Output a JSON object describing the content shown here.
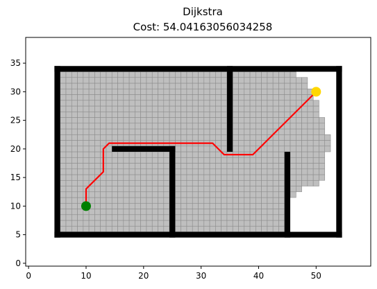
{
  "chart_data": {
    "type": "scatter",
    "title": "Dijkstra",
    "subtitle": "Cost: 54.04163056034258",
    "xlim": [
      -0.5,
      59.5
    ],
    "ylim": [
      -0.5,
      39.5
    ],
    "x_ticks": [
      "0",
      "10",
      "20",
      "30",
      "40",
      "50"
    ],
    "y_ticks": [
      "0",
      "5",
      "10",
      "15",
      "20",
      "25",
      "30",
      "35"
    ],
    "grid": false,
    "colors": {
      "visited_fill": "#bfbfbf",
      "visited_edge": "#8c8c8c",
      "obstacle": "#000000",
      "path": "#ff0000",
      "start": "#008000",
      "goal": "#ffd700"
    },
    "start": [
      10,
      10
    ],
    "goal": [
      50,
      30
    ],
    "obstacle_walls": [
      {
        "x1": 5,
        "y1": 5,
        "x2": 54,
        "y2": 5
      },
      {
        "x1": 5,
        "y1": 34,
        "x2": 54,
        "y2": 34
      },
      {
        "x1": 5,
        "y1": 5,
        "x2": 5,
        "y2": 34
      },
      {
        "x1": 54,
        "y1": 5,
        "x2": 54,
        "y2": 34
      },
      {
        "x1": 15,
        "y1": 20,
        "x2": 25,
        "y2": 20
      },
      {
        "x1": 25,
        "y1": 5,
        "x2": 25,
        "y2": 20
      },
      {
        "x1": 35,
        "y1": 20,
        "x2": 35,
        "y2": 34
      },
      {
        "x1": 45,
        "y1": 5,
        "x2": 45,
        "y2": 19
      }
    ],
    "visited_rows": [
      {
        "y": 6,
        "x_min": 6,
        "x_max": 44
      },
      {
        "y": 7,
        "x_min": 6,
        "x_max": 44
      },
      {
        "y": 8,
        "x_min": 6,
        "x_max": 44
      },
      {
        "y": 9,
        "x_min": 6,
        "x_max": 44
      },
      {
        "y": 10,
        "x_min": 6,
        "x_max": 44
      },
      {
        "y": 11,
        "x_min": 6,
        "x_max": 44
      },
      {
        "y": 12,
        "x_min": 6,
        "x_max": 46
      },
      {
        "y": 13,
        "x_min": 6,
        "x_max": 47
      },
      {
        "y": 14,
        "x_min": 6,
        "x_max": 50
      },
      {
        "y": 15,
        "x_min": 6,
        "x_max": 51
      },
      {
        "y": 16,
        "x_min": 6,
        "x_max": 51
      },
      {
        "y": 17,
        "x_min": 6,
        "x_max": 51
      },
      {
        "y": 18,
        "x_min": 6,
        "x_max": 51
      },
      {
        "y": 19,
        "x_min": 6,
        "x_max": 51
      },
      {
        "y": 20,
        "x_min": 6,
        "x_max": 52
      },
      {
        "y": 21,
        "x_min": 6,
        "x_max": 52
      },
      {
        "y": 22,
        "x_min": 6,
        "x_max": 52
      },
      {
        "y": 23,
        "x_min": 6,
        "x_max": 51
      },
      {
        "y": 24,
        "x_min": 6,
        "x_max": 51
      },
      {
        "y": 25,
        "x_min": 6,
        "x_max": 51
      },
      {
        "y": 26,
        "x_min": 6,
        "x_max": 50
      },
      {
        "y": 27,
        "x_min": 6,
        "x_max": 50
      },
      {
        "y": 28,
        "x_min": 6,
        "x_max": 50
      },
      {
        "y": 29,
        "x_min": 6,
        "x_max": 49
      },
      {
        "y": 30,
        "x_min": 6,
        "x_max": 49
      },
      {
        "y": 31,
        "x_min": 6,
        "x_max": 48
      },
      {
        "y": 32,
        "x_min": 6,
        "x_max": 48
      },
      {
        "y": 33,
        "x_min": 6,
        "x_max": 46
      }
    ],
    "path": [
      [
        10,
        10
      ],
      [
        10,
        13
      ],
      [
        13,
        16
      ],
      [
        13,
        20
      ],
      [
        14,
        21
      ],
      [
        32,
        21
      ],
      [
        34,
        19
      ],
      [
        39,
        19
      ],
      [
        50,
        30
      ]
    ]
  }
}
